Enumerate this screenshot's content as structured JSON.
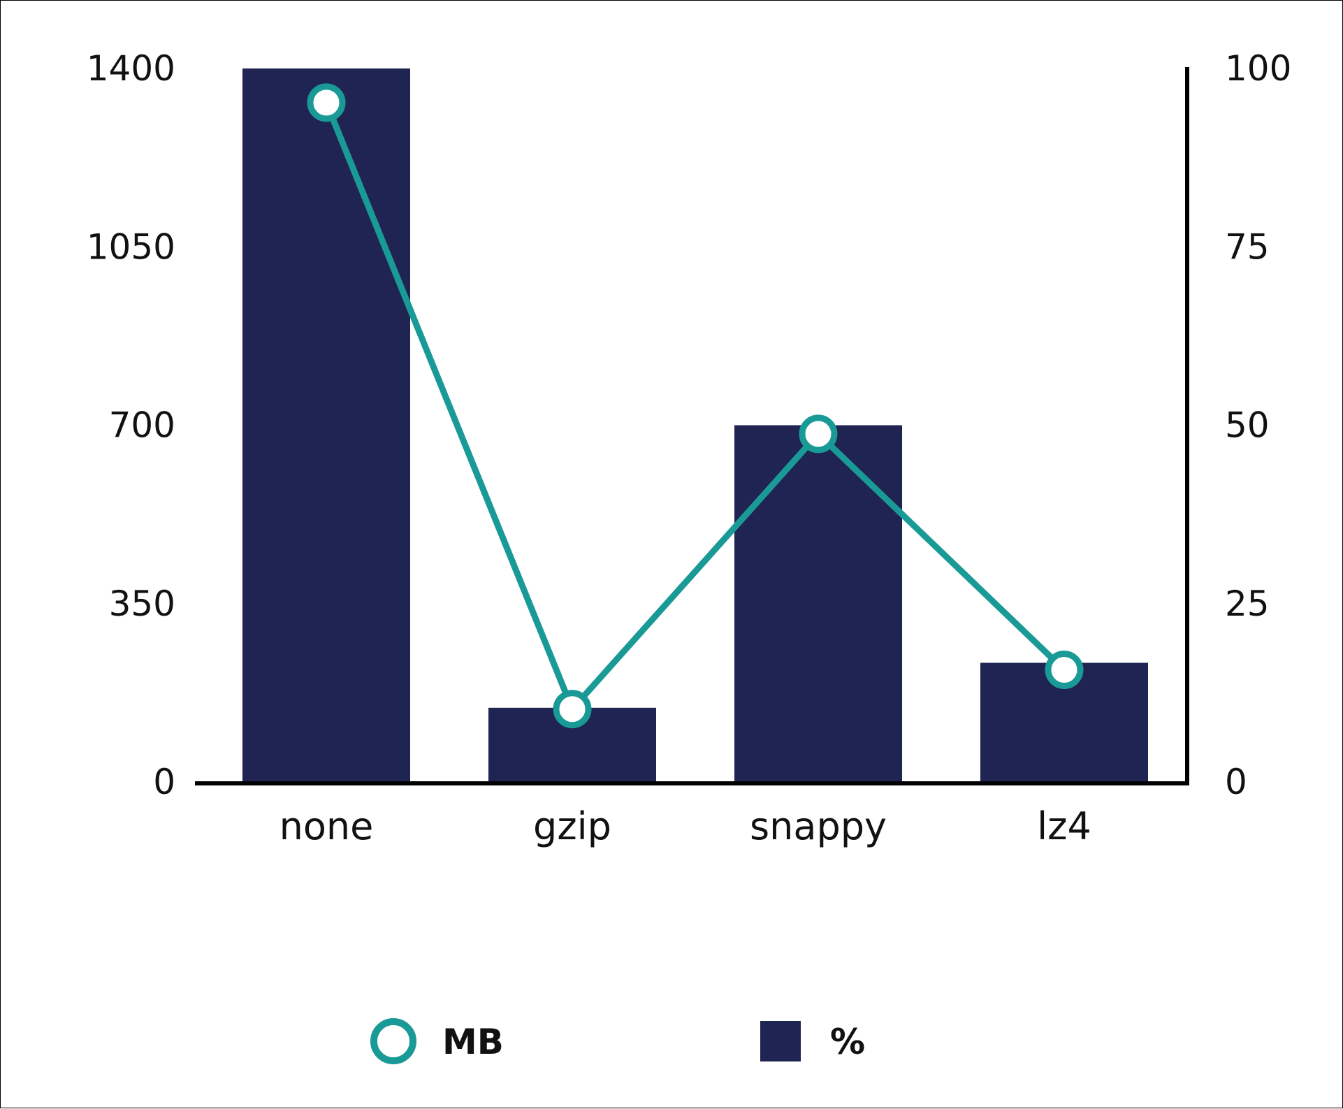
{
  "colors": {
    "bar": "#1f2452",
    "line": "#1a9a96",
    "axis": "#000000",
    "marker_fill": "#ffffff"
  },
  "chart_data": {
    "type": "bar",
    "categories": [
      "none",
      "gzip",
      "snappy",
      "lz4"
    ],
    "y_left": {
      "ticks": [
        "0",
        "350",
        "700",
        "1050",
        "1400"
      ],
      "ylim": [
        0,
        1400
      ]
    },
    "y_right": {
      "ticks": [
        "0",
        "25",
        "50",
        "75",
        "100"
      ],
      "ylim": [
        0,
        100
      ]
    },
    "series": [
      {
        "name": "MB",
        "kind": "line",
        "axis": "left",
        "values": [
          1333,
          143,
          683,
          220
        ]
      },
      {
        "name": "%",
        "kind": "bar",
        "axis": "right",
        "values": [
          100,
          10.4,
          50,
          16.7
        ]
      }
    ],
    "legend": {
      "position": "bottom",
      "entries": [
        "MB",
        "%"
      ]
    },
    "grid": false
  }
}
